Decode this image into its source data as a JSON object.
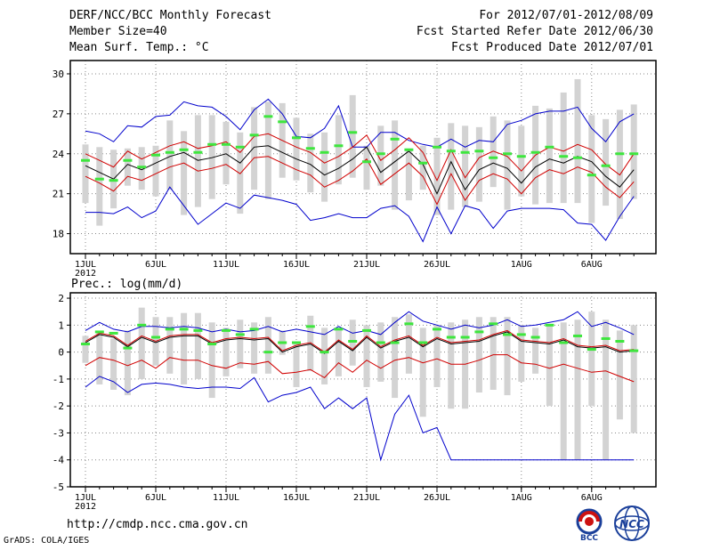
{
  "header": {
    "left_lines": [
      "DERF/NCC/BCC Monthly Forecast",
      "Member Size=40",
      "Mean Surf. Temp.: °C"
    ],
    "right_lines": [
      "For 2012/07/01-2012/08/09",
      "Fcst Started Refer Date 2012/06/30",
      "Fcst Produced Date 2012/07/01"
    ]
  },
  "footer": {
    "url": "http://cmdp.ncc.cma.gov.cn",
    "credit": "GrADS: COLA/IGES",
    "logo_left_text": "BCC",
    "logo_right_text": "NCC"
  },
  "colors": {
    "box": "#d3d3d3",
    "mean": "#000000",
    "spread": "#d10000",
    "extreme": "#0000cc",
    "marker": "#3ee63e",
    "grid": "#888888"
  },
  "chart_data": [
    {
      "type": "line",
      "title": "Mean Surf. Temp.: °C",
      "ylabel": "°C",
      "ylim": [
        16.5,
        31
      ],
      "yticks": [
        18,
        21,
        24,
        27,
        30
      ],
      "grid": true,
      "x_day_index": [
        1,
        6,
        11,
        16,
        21,
        26,
        32,
        37
      ],
      "x_tick_labels": [
        "1JUL",
        "6JUL",
        "11JUL",
        "16JUL",
        "21JUL",
        "26JUL",
        "1AUG",
        "6AUG"
      ],
      "x_year_label": "2012",
      "days": 40,
      "mean": [
        23.1,
        22.6,
        22.1,
        23.2,
        22.8,
        23.3,
        23.8,
        24.1,
        23.5,
        23.7,
        24.0,
        23.3,
        24.5,
        24.6,
        24.1,
        23.6,
        23.2,
        22.4,
        22.9,
        23.6,
        24.5,
        22.6,
        23.4,
        24.2,
        23.2,
        21.0,
        23.4,
        21.3,
        22.8,
        23.3,
        22.9,
        21.8,
        23.0,
        23.6,
        23.3,
        23.8,
        23.4,
        22.3,
        21.5,
        22.8
      ],
      "upper": [
        24.0,
        23.5,
        23.0,
        24.2,
        23.6,
        24.1,
        24.6,
        24.9,
        24.4,
        24.6,
        24.9,
        24.1,
        25.3,
        25.5,
        25.0,
        24.5,
        24.1,
        23.3,
        23.8,
        24.5,
        25.4,
        23.5,
        24.3,
        25.2,
        24.1,
        22.0,
        24.3,
        22.2,
        23.7,
        24.2,
        23.8,
        22.7,
        23.9,
        24.5,
        24.2,
        24.7,
        24.3,
        23.2,
        22.4,
        24.0
      ],
      "lower": [
        22.3,
        21.8,
        21.2,
        22.3,
        22.0,
        22.5,
        23.0,
        23.3,
        22.7,
        22.9,
        23.2,
        22.5,
        23.7,
        23.8,
        23.3,
        22.8,
        22.4,
        21.5,
        22.0,
        22.7,
        23.6,
        21.7,
        22.5,
        23.3,
        22.3,
        20.2,
        22.5,
        20.5,
        22.0,
        22.5,
        22.1,
        21.0,
        22.2,
        22.8,
        22.5,
        23.0,
        22.6,
        21.5,
        20.7,
        21.9
      ],
      "max": [
        25.7,
        25.5,
        24.9,
        26.1,
        26.0,
        26.8,
        26.9,
        27.9,
        27.6,
        27.5,
        26.8,
        25.8,
        27.3,
        28.1,
        27.0,
        25.3,
        25.2,
        25.9,
        27.6,
        24.5,
        24.5,
        25.6,
        25.6,
        25.0,
        24.7,
        24.5,
        25.1,
        24.5,
        25.0,
        24.9,
        26.2,
        26.5,
        27.0,
        27.2,
        27.2,
        27.5,
        25.9,
        24.9,
        26.4,
        27.0
      ],
      "min": [
        19.6,
        19.6,
        19.5,
        20.0,
        19.2,
        19.7,
        21.5,
        20.1,
        18.7,
        19.5,
        20.3,
        19.9,
        20.9,
        20.7,
        20.5,
        20.2,
        19.0,
        19.2,
        19.5,
        19.2,
        19.2,
        19.9,
        20.1,
        19.3,
        17.4,
        20.0,
        18.0,
        20.1,
        19.8,
        18.4,
        19.7,
        19.9,
        19.9,
        19.9,
        19.8,
        18.8,
        18.7,
        17.5,
        19.3,
        20.8
      ],
      "box_low": [
        20.3,
        18.6,
        19.9,
        21.6,
        21.3,
        20.8,
        21.3,
        19.4,
        20.0,
        20.6,
        21.7,
        19.5,
        21.3,
        20.6,
        22.2,
        22.0,
        21.1,
        20.4,
        21.7,
        22.2,
        21.3,
        21.6,
        19.8,
        20.5,
        21.3,
        19.4,
        19.8,
        20.0,
        20.4,
        21.5,
        19.8,
        20.8,
        20.2,
        20.3,
        20.3,
        20.3,
        18.8,
        20.1,
        19.1,
        20.6
      ],
      "box_high": [
        24.7,
        24.5,
        24.3,
        24.4,
        24.5,
        24.6,
        26.5,
        25.7,
        26.9,
        26.9,
        26.4,
        25.6,
        27.5,
        27.9,
        27.8,
        26.7,
        25.5,
        25.6,
        26.9,
        28.4,
        24.6,
        26.1,
        26.5,
        24.4,
        24.6,
        25.2,
        26.3,
        26.1,
        26.0,
        26.8,
        26.5,
        26.1,
        27.6,
        27.4,
        28.6,
        29.6,
        26.9,
        26.6,
        27.3,
        27.7
      ],
      "markers": [
        23.5,
        22.1,
        22.0,
        23.5,
        23.0,
        23.9,
        24.1,
        24.3,
        24.1,
        24.7,
        24.7,
        24.5,
        25.4,
        26.8,
        26.4,
        25.2,
        24.4,
        24.1,
        24.6,
        25.6,
        23.4,
        24.0,
        25.1,
        24.3,
        23.3,
        24.5,
        24.2,
        24.1,
        24.2,
        23.7,
        24.0,
        23.8,
        24.1,
        24.5,
        23.8,
        23.7,
        22.4,
        23.1,
        24.0,
        24.0
      ]
    },
    {
      "type": "line",
      "title": "Prec.: log(mm/d)",
      "ylabel": "log(mm/d)",
      "ylim": [
        -5,
        2.2
      ],
      "yticks": [
        -5,
        -4,
        -3,
        -2,
        -1,
        0,
        1,
        2
      ],
      "grid": true,
      "x_day_index": [
        1,
        6,
        11,
        16,
        21,
        26,
        32,
        37
      ],
      "x_tick_labels": [
        "1JUL",
        "6JUL",
        "11JUL",
        "16JUL",
        "21JUL",
        "26JUL",
        "1AUG",
        "6AUG"
      ],
      "x_year_label": "2012",
      "days": 40,
      "mean": [
        0.35,
        0.65,
        0.55,
        0.2,
        0.55,
        0.35,
        0.55,
        0.6,
        0.6,
        0.3,
        0.45,
        0.5,
        0.45,
        0.5,
        0.0,
        0.2,
        0.3,
        -0.05,
        0.4,
        0.05,
        0.55,
        0.15,
        0.4,
        0.55,
        0.2,
        0.5,
        0.3,
        0.35,
        0.4,
        0.6,
        0.75,
        0.4,
        0.35,
        0.3,
        0.45,
        0.2,
        0.15,
        0.2,
        0.0,
        0.05
      ],
      "upper": [
        0.4,
        0.7,
        0.6,
        0.25,
        0.6,
        0.4,
        0.6,
        0.65,
        0.65,
        0.35,
        0.5,
        0.55,
        0.5,
        0.55,
        0.05,
        0.25,
        0.35,
        0.0,
        0.45,
        0.1,
        0.6,
        0.2,
        0.45,
        0.6,
        0.25,
        0.55,
        0.35,
        0.4,
        0.45,
        0.65,
        0.8,
        0.45,
        0.4,
        0.35,
        0.5,
        0.25,
        0.2,
        0.25,
        0.05,
        0.1
      ],
      "lower": [
        -0.5,
        -0.2,
        -0.3,
        -0.5,
        -0.3,
        -0.6,
        -0.2,
        -0.3,
        -0.3,
        -0.5,
        -0.6,
        -0.4,
        -0.45,
        -0.35,
        -0.8,
        -0.75,
        -0.65,
        -0.95,
        -0.4,
        -0.75,
        -0.3,
        -0.6,
        -0.3,
        -0.2,
        -0.4,
        -0.25,
        -0.45,
        -0.45,
        -0.3,
        -0.1,
        -0.1,
        -0.4,
        -0.45,
        -0.6,
        -0.45,
        -0.6,
        -0.75,
        -0.7,
        -0.9,
        -1.1
      ],
      "max": [
        0.8,
        1.1,
        0.85,
        0.75,
        0.95,
        0.95,
        0.9,
        0.95,
        0.9,
        0.75,
        0.85,
        0.75,
        0.8,
        0.95,
        0.75,
        0.85,
        0.75,
        0.65,
        0.95,
        0.7,
        0.8,
        0.65,
        1.1,
        1.5,
        1.15,
        1.0,
        0.85,
        1.0,
        0.9,
        1.0,
        1.2,
        0.95,
        1.0,
        1.1,
        1.2,
        1.5,
        0.95,
        1.1,
        0.9,
        0.65
      ],
      "min": [
        -1.3,
        -0.9,
        -1.1,
        -1.5,
        -1.2,
        -1.15,
        -1.2,
        -1.3,
        -1.35,
        -1.3,
        -1.3,
        -1.35,
        -0.95,
        -1.85,
        -1.6,
        -1.5,
        -1.3,
        -2.1,
        -1.7,
        -2.1,
        -1.7,
        -4.0,
        -2.3,
        -1.6,
        -3.0,
        -2.8,
        -4.0,
        -4.0,
        -4.0,
        -4.0,
        -4.0,
        -4.0,
        -4.0,
        -4.0,
        -4.0,
        -4.0,
        -4.0,
        -4.0,
        -4.0,
        -4.0
      ],
      "box_low": [
        -0.4,
        -1.2,
        -1.4,
        -1.6,
        -1.0,
        -0.5,
        -0.8,
        -1.2,
        -1.0,
        -1.7,
        -0.9,
        -0.6,
        -0.8,
        -0.8,
        -0.1,
        -1.3,
        -0.7,
        -1.2,
        -0.9,
        -0.5,
        -1.3,
        -1.1,
        -1.7,
        -0.8,
        -2.4,
        -1.3,
        -2.1,
        -2.1,
        -1.5,
        -1.4,
        -1.6,
        -1.1,
        -0.8,
        -2.0,
        -4.0,
        -4.0,
        -2.0,
        -4.0,
        -2.5,
        -3.0
      ],
      "box_high": [
        0.6,
        0.7,
        0.5,
        0.8,
        1.65,
        1.3,
        1.3,
        1.45,
        1.45,
        1.1,
        0.9,
        1.2,
        1.1,
        1.3,
        0.8,
        0.4,
        1.35,
        0.9,
        0.8,
        1.2,
        1.0,
        1.1,
        1.3,
        1.4,
        0.9,
        1.0,
        1.1,
        1.2,
        1.3,
        1.3,
        1.3,
        1.0,
        0.9,
        1.0,
        1.1,
        1.2,
        1.5,
        1.2,
        0.8,
        1.0
      ],
      "markers": [
        0.3,
        0.75,
        0.7,
        0.15,
        1.0,
        0.55,
        0.85,
        0.85,
        0.8,
        0.3,
        0.8,
        0.65,
        0.85,
        0.0,
        0.35,
        0.35,
        0.95,
        0.0,
        0.85,
        0.4,
        0.8,
        0.35,
        0.35,
        1.05,
        0.35,
        0.85,
        0.55,
        0.55,
        0.75,
        1.05,
        0.65,
        0.65,
        0.55,
        1.0,
        0.35,
        0.6,
        0.1,
        0.5,
        0.4,
        0.05
      ]
    }
  ]
}
